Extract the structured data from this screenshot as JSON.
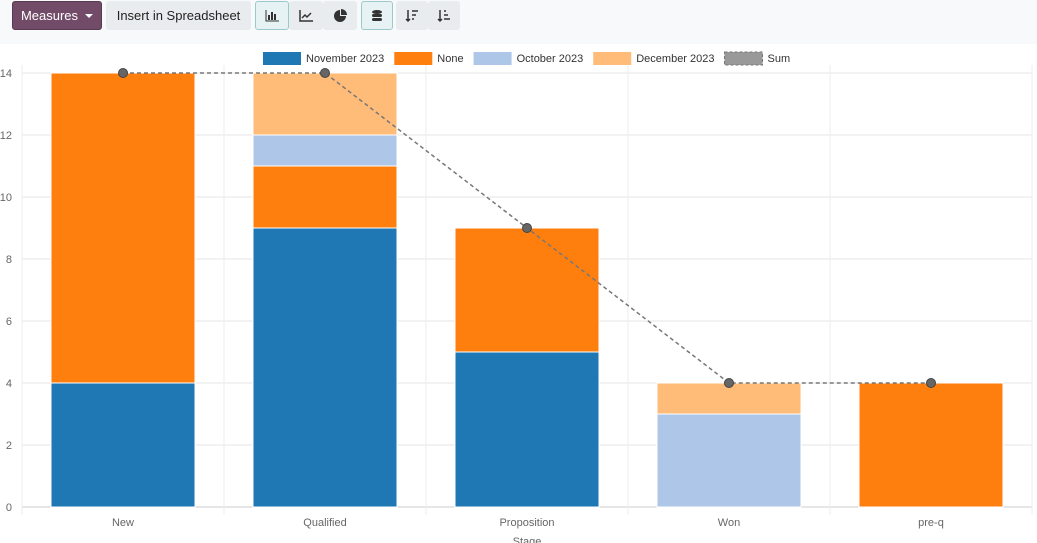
{
  "toolbar": {
    "measures_label": "Measures",
    "insert_label": "Insert in Spreadsheet",
    "icons": [
      "bar-chart-icon",
      "line-chart-icon",
      "pie-chart-icon",
      "stacked-icon",
      "sort-descending-icon",
      "sort-ascending-icon"
    ]
  },
  "chart_data": {
    "type": "bar",
    "stacked": true,
    "categories": [
      "New",
      "Qualified",
      "Proposition",
      "Won",
      "pre-q"
    ],
    "xlabel": "Stage",
    "ylabel": "",
    "ylim": [
      0,
      14
    ],
    "yticks": [
      0,
      2,
      4,
      6,
      8,
      10,
      12,
      14
    ],
    "series": [
      {
        "name": "November 2023",
        "color": "#1f77b4",
        "values": [
          4,
          9,
          5,
          0,
          0
        ]
      },
      {
        "name": "None",
        "color": "#ff7f0e",
        "values": [
          10,
          2,
          4,
          0,
          4
        ]
      },
      {
        "name": "October 2023",
        "color": "#aec7e8",
        "values": [
          0,
          1,
          0,
          3,
          0
        ]
      },
      {
        "name": "December 2023",
        "color": "#ffbb78",
        "values": [
          0,
          2,
          0,
          1,
          0
        ]
      }
    ],
    "sum": {
      "name": "Sum",
      "values": [
        14,
        14,
        9,
        4,
        4
      ]
    },
    "legend": "top",
    "grid": true
  }
}
